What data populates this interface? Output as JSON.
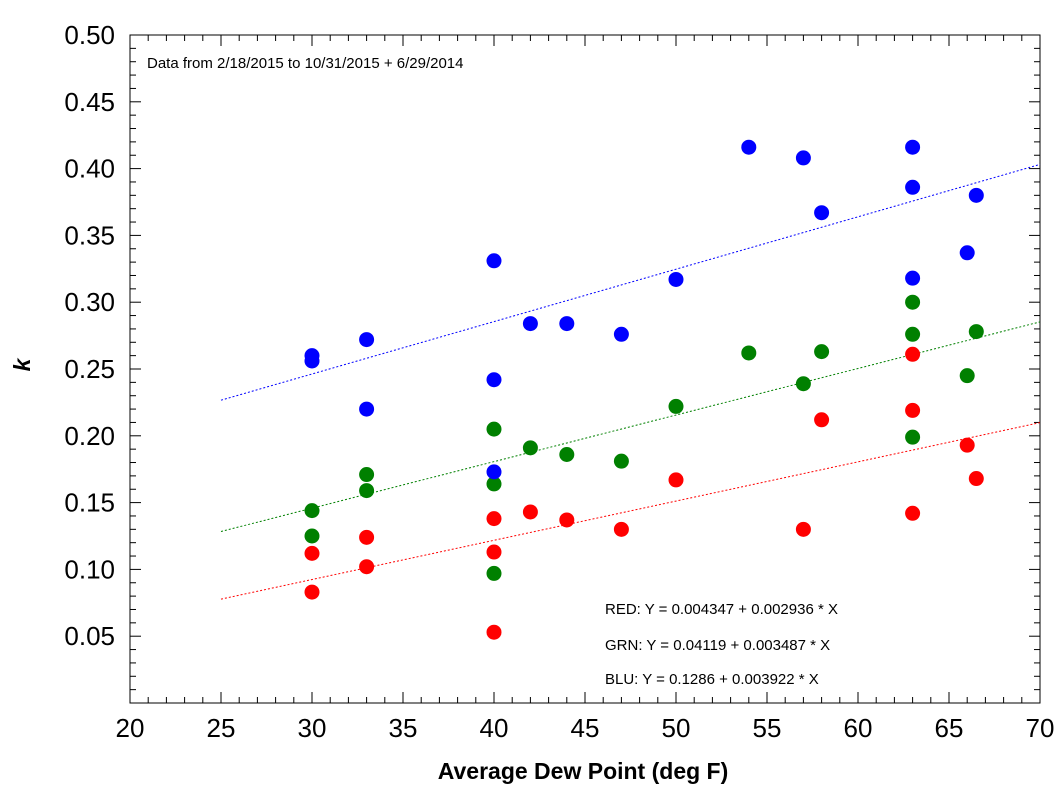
{
  "chart_data": {
    "type": "scatter",
    "title": "",
    "xlabel": "Average Dew Point (deg F)",
    "ylabel": "k",
    "xlim": [
      20,
      70
    ],
    "ylim": [
      0.0,
      0.5
    ],
    "x_ticks": [
      20,
      25,
      30,
      35,
      40,
      45,
      50,
      55,
      60,
      65,
      70
    ],
    "x_tick_labels": [
      "20",
      "25",
      "30",
      "35",
      "40",
      "45",
      "50",
      "55",
      "60",
      "65",
      "70"
    ],
    "y_ticks": [
      0.05,
      0.1,
      0.15,
      0.2,
      0.25,
      0.3,
      0.35,
      0.4,
      0.45,
      0.5
    ],
    "y_tick_labels": [
      "0.05",
      "0.10",
      "0.15",
      "0.20",
      "0.25",
      "0.30",
      "0.35",
      "0.40",
      "0.45",
      "0.50"
    ],
    "grid": false,
    "annotation": "Data from 2/18/2015 to 10/31/2015 + 6/29/2014",
    "series": [
      {
        "name": "RED",
        "color": "#ff0000",
        "points": [
          [
            30,
            0.112
          ],
          [
            30,
            0.083
          ],
          [
            33,
            0.124
          ],
          [
            33,
            0.102
          ],
          [
            40,
            0.138
          ],
          [
            40,
            0.113
          ],
          [
            40,
            0.053
          ],
          [
            42,
            0.143
          ],
          [
            44,
            0.137
          ],
          [
            47,
            0.13
          ],
          [
            50,
            0.167
          ],
          [
            57,
            0.13
          ],
          [
            58,
            0.212
          ],
          [
            63,
            0.261
          ],
          [
            63,
            0.219
          ],
          [
            63,
            0.142
          ],
          [
            66,
            0.193
          ],
          [
            66.5,
            0.168
          ]
        ],
        "fit": {
          "intercept": 0.004347,
          "slope": 0.002936,
          "x_range": [
            25,
            70
          ]
        },
        "equation": "RED:  Y = 0.004347 + 0.002936 * X"
      },
      {
        "name": "GRN",
        "color": "#008000",
        "points": [
          [
            30,
            0.144
          ],
          [
            30,
            0.125
          ],
          [
            33,
            0.171
          ],
          [
            33,
            0.159
          ],
          [
            40,
            0.205
          ],
          [
            40,
            0.164
          ],
          [
            40,
            0.097
          ],
          [
            42,
            0.191
          ],
          [
            44,
            0.186
          ],
          [
            47,
            0.181
          ],
          [
            50,
            0.222
          ],
          [
            54,
            0.262
          ],
          [
            57,
            0.239
          ],
          [
            58,
            0.263
          ],
          [
            63,
            0.3
          ],
          [
            63,
            0.276
          ],
          [
            63,
            0.199
          ],
          [
            66,
            0.245
          ],
          [
            66.5,
            0.278
          ]
        ],
        "fit": {
          "intercept": 0.04119,
          "slope": 0.003487,
          "x_range": [
            25,
            70
          ]
        },
        "equation": "GRN:  Y = 0.04119 + 0.003487 * X"
      },
      {
        "name": "BLU",
        "color": "#0000ff",
        "points": [
          [
            30,
            0.26
          ],
          [
            30,
            0.256
          ],
          [
            33,
            0.272
          ],
          [
            33,
            0.22
          ],
          [
            40,
            0.331
          ],
          [
            40,
            0.242
          ],
          [
            40,
            0.173
          ],
          [
            42,
            0.284
          ],
          [
            44,
            0.284
          ],
          [
            47,
            0.276
          ],
          [
            50,
            0.317
          ],
          [
            54,
            0.416
          ],
          [
            57,
            0.408
          ],
          [
            58,
            0.367
          ],
          [
            63,
            0.416
          ],
          [
            63,
            0.386
          ],
          [
            63,
            0.318
          ],
          [
            66,
            0.337
          ],
          [
            66.5,
            0.38
          ]
        ],
        "fit": {
          "intercept": 0.1286,
          "slope": 0.003922,
          "x_range": [
            25,
            70
          ]
        },
        "equation": "BLU:   Y = 0.1286 + 0.003922 * X"
      }
    ]
  }
}
